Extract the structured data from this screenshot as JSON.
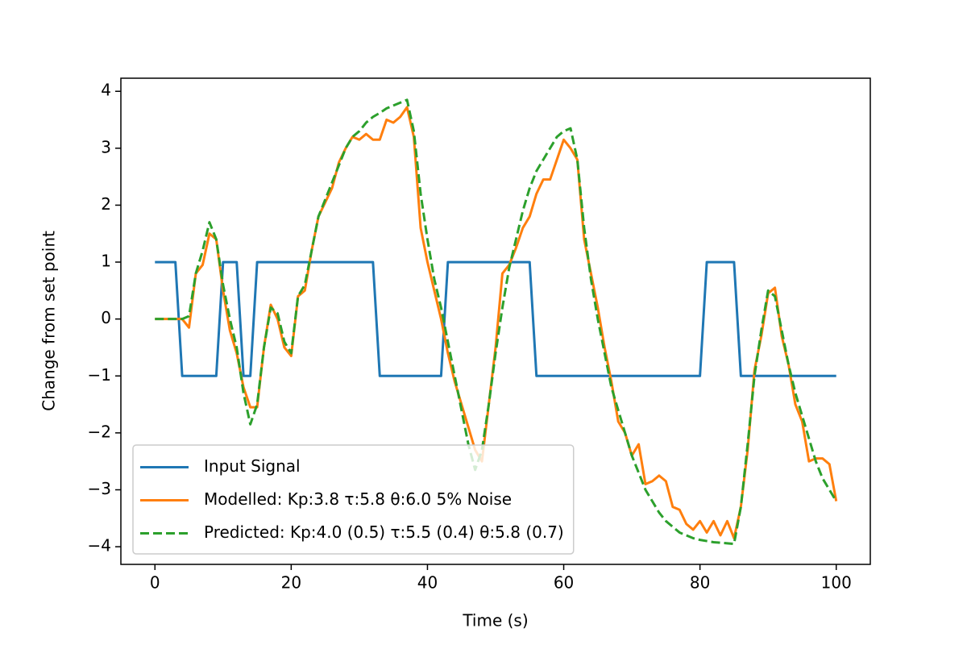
{
  "chart_data": {
    "type": "line",
    "xlabel": "Time (s)",
    "ylabel": "Change from set point",
    "x": [
      0,
      1,
      2,
      3,
      4,
      5,
      6,
      7,
      8,
      9,
      10,
      11,
      12,
      13,
      14,
      15,
      16,
      17,
      18,
      19,
      20,
      21,
      22,
      23,
      24,
      25,
      26,
      27,
      28,
      29,
      30,
      31,
      32,
      33,
      34,
      35,
      36,
      37,
      38,
      39,
      40,
      41,
      42,
      43,
      44,
      45,
      46,
      47,
      48,
      49,
      50,
      51,
      52,
      53,
      54,
      55,
      56,
      57,
      58,
      59,
      60,
      61,
      62,
      63,
      64,
      65,
      66,
      67,
      68,
      69,
      70,
      71,
      72,
      73,
      74,
      75,
      76,
      77,
      78,
      79,
      80,
      81,
      82,
      83,
      84,
      85,
      86,
      87,
      88,
      89,
      90,
      91,
      92,
      93,
      94,
      95,
      96,
      97,
      98,
      99,
      100
    ],
    "series": [
      {
        "name": "Input Signal",
        "color": "#1f77b4",
        "dash": false,
        "values": [
          1,
          1,
          1,
          1,
          -1,
          -1,
          -1,
          -1,
          -1,
          -1,
          1,
          1,
          1,
          -1,
          -1,
          1,
          1,
          1,
          1,
          1,
          1,
          1,
          1,
          1,
          1,
          1,
          1,
          1,
          1,
          1,
          1,
          1,
          1,
          -1,
          -1,
          -1,
          -1,
          -1,
          -1,
          -1,
          -1,
          -1,
          -1,
          1,
          1,
          1,
          1,
          1,
          1,
          1,
          1,
          1,
          1,
          1,
          1,
          1,
          -1,
          -1,
          -1,
          -1,
          -1,
          -1,
          -1,
          -1,
          -1,
          -1,
          -1,
          -1,
          -1,
          -1,
          -1,
          -1,
          -1,
          -1,
          -1,
          -1,
          -1,
          -1,
          -1,
          -1,
          -1,
          1,
          1,
          1,
          1,
          1,
          -1,
          -1,
          -1,
          -1,
          -1,
          -1,
          -1,
          -1,
          -1,
          -1,
          -1,
          -1,
          -1,
          -1,
          -1
        ]
      },
      {
        "name": "Modelled: Kp:3.8 τ:5.8 θ:6.0  5% Noise",
        "color": "#ff7f0e",
        "dash": false,
        "values": [
          0,
          0,
          0,
          0,
          0,
          -0.15,
          0.8,
          0.95,
          1.5,
          1.4,
          0.5,
          -0.2,
          -0.6,
          -1.2,
          -1.55,
          -1.55,
          -0.5,
          0.25,
          0.0,
          -0.5,
          -0.65,
          0.4,
          0.5,
          1.2,
          1.8,
          2.05,
          2.3,
          2.75,
          3.0,
          3.2,
          3.15,
          3.25,
          3.15,
          3.15,
          3.5,
          3.45,
          3.55,
          3.72,
          3.2,
          1.6,
          1.0,
          0.5,
          0.0,
          -0.6,
          -1.1,
          -1.5,
          -1.9,
          -2.3,
          -2.5,
          -1.5,
          -0.5,
          0.8,
          0.95,
          1.25,
          1.6,
          1.8,
          2.2,
          2.45,
          2.45,
          2.8,
          3.15,
          3.0,
          2.8,
          1.4,
          0.8,
          0.2,
          -0.5,
          -1.1,
          -1.8,
          -2.0,
          -2.4,
          -2.2,
          -2.9,
          -2.85,
          -2.75,
          -2.85,
          -3.3,
          -3.35,
          -3.6,
          -3.7,
          -3.55,
          -3.75,
          -3.55,
          -3.8,
          -3.55,
          -3.85,
          -3.3,
          -2.3,
          -0.9,
          -0.3,
          0.45,
          0.55,
          -0.3,
          -0.8,
          -1.5,
          -1.8,
          -2.5,
          -2.45,
          -2.45,
          -2.55,
          -3.2
        ]
      },
      {
        "name": "Predicted: Kp:4.0 (0.5) τ:5.5 (0.4) θ:5.8 (0.7)",
        "color": "#2ca02c",
        "dash": true,
        "values": [
          0,
          0,
          0,
          0,
          0,
          0.05,
          0.8,
          1.2,
          1.7,
          1.4,
          0.6,
          0,
          -0.5,
          -1.3,
          -1.85,
          -1.5,
          -0.5,
          0.2,
          0.1,
          -0.4,
          -0.6,
          0.4,
          0.6,
          1.2,
          1.8,
          2.1,
          2.4,
          2.7,
          3.0,
          3.2,
          3.3,
          3.45,
          3.55,
          3.62,
          3.7,
          3.75,
          3.8,
          3.85,
          3.3,
          2.2,
          1.4,
          0.7,
          0.2,
          -0.4,
          -1.0,
          -1.6,
          -2.2,
          -2.65,
          -2.3,
          -1.5,
          -0.6,
          0.2,
          0.9,
          1.4,
          1.9,
          2.3,
          2.6,
          2.8,
          3.0,
          3.2,
          3.3,
          3.35,
          2.8,
          1.6,
          0.7,
          0,
          -0.6,
          -1.2,
          -1.6,
          -2.0,
          -2.4,
          -2.7,
          -3.0,
          -3.2,
          -3.4,
          -3.55,
          -3.65,
          -3.75,
          -3.8,
          -3.85,
          -3.88,
          -3.9,
          -3.92,
          -3.93,
          -3.94,
          -3.95,
          -3.3,
          -2.2,
          -1.0,
          -0.2,
          0.5,
          0.4,
          -0.2,
          -0.8,
          -1.3,
          -1.7,
          -2.1,
          -2.5,
          -2.8,
          -3.0,
          -3.2
        ]
      }
    ],
    "xlim": [
      -5,
      105
    ],
    "ylim": [
      -4.31,
      4.23
    ],
    "xticks": [
      0,
      20,
      40,
      60,
      80,
      100
    ],
    "yticks": [
      {
        "value": -4,
        "label": "−4"
      },
      {
        "value": -3,
        "label": "−3"
      },
      {
        "value": -2,
        "label": "−2"
      },
      {
        "value": -1,
        "label": "−1"
      },
      0,
      1,
      2,
      3,
      4
    ],
    "legend": "lower left"
  }
}
